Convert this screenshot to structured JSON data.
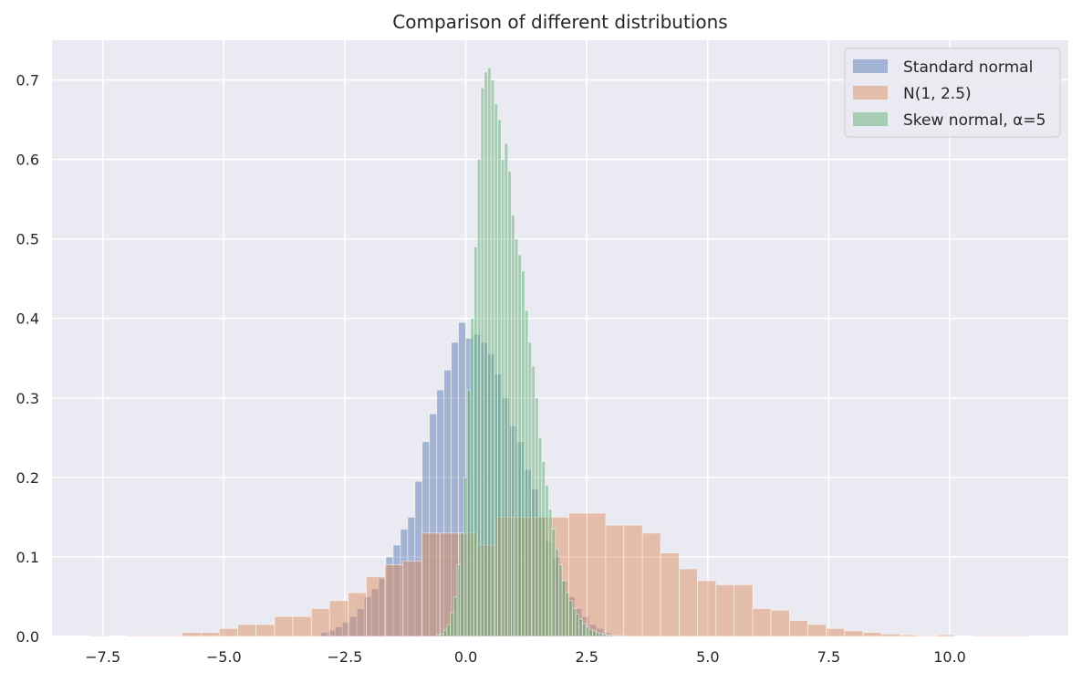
{
  "chart_data": {
    "type": "bar",
    "title": "Comparison of different distributions",
    "xlabel": "",
    "ylabel": "",
    "xlim": [
      -8.55,
      12.45
    ],
    "ylim": [
      0,
      0.75
    ],
    "x_ticks": [
      -7.5,
      -5.0,
      -2.5,
      0.0,
      2.5,
      5.0,
      7.5,
      10.0
    ],
    "x_tick_labels": [
      "−7.5",
      "−5.0",
      "−2.5",
      "0.0",
      "2.5",
      "5.0",
      "7.5",
      "10.0"
    ],
    "y_ticks": [
      0.0,
      0.1,
      0.2,
      0.3,
      0.4,
      0.5,
      0.6,
      0.7
    ],
    "y_tick_labels": [
      "0.0",
      "0.1",
      "0.2",
      "0.3",
      "0.4",
      "0.5",
      "0.6",
      "0.7"
    ],
    "grid": true,
    "legend_position": "top-right",
    "background_color": "#eaeaf2",
    "series": [
      {
        "name": "Standard normal",
        "color": "#4c72b0",
        "opacity": 0.45,
        "bin_edges": [
          -3.0,
          -2.85,
          -2.7,
          -2.55,
          -2.4,
          -2.25,
          -2.1,
          -1.95,
          -1.8,
          -1.65,
          -1.5,
          -1.35,
          -1.2,
          -1.05,
          -0.9,
          -0.75,
          -0.6,
          -0.45,
          -0.3,
          -0.15,
          0.0,
          0.15,
          0.3,
          0.45,
          0.6,
          0.75,
          0.9,
          1.05,
          1.2,
          1.35,
          1.5,
          1.65,
          1.8,
          1.95,
          2.1,
          2.25,
          2.4,
          2.55,
          2.7,
          2.85,
          3.0
        ],
        "values": [
          0.005,
          0.008,
          0.012,
          0.018,
          0.025,
          0.035,
          0.05,
          0.06,
          0.073,
          0.1,
          0.115,
          0.135,
          0.15,
          0.195,
          0.245,
          0.28,
          0.31,
          0.335,
          0.37,
          0.395,
          0.375,
          0.38,
          0.37,
          0.355,
          0.33,
          0.3,
          0.265,
          0.245,
          0.21,
          0.185,
          0.15,
          0.12,
          0.1,
          0.07,
          0.05,
          0.035,
          0.025,
          0.015,
          0.01,
          0.005
        ]
      },
      {
        "name": "N(1, 2.5)",
        "color": "#dd8452",
        "opacity": 0.45,
        "bin_edges": [
          -7.75,
          -7.375,
          -6.99,
          -6.615,
          -6.23,
          -5.855,
          -5.47,
          -5.095,
          -4.71,
          -4.335,
          -3.95,
          -3.575,
          -3.19,
          -2.815,
          -2.43,
          -2.055,
          -1.67,
          -1.295,
          -0.91,
          -0.535,
          -0.15,
          0.225,
          0.61,
          0.985,
          1.37,
          1.745,
          2.13,
          2.505,
          2.89,
          3.265,
          3.65,
          4.025,
          4.41,
          4.785,
          5.17,
          5.545,
          5.93,
          6.305,
          6.69,
          7.065,
          7.45,
          7.825,
          8.21,
          8.585,
          8.97,
          9.345,
          9.73,
          10.105,
          10.49,
          10.865,
          11.25,
          11.625
        ],
        "values": [
          0.001,
          0.0,
          0.001,
          0.001,
          0.001,
          0.005,
          0.005,
          0.01,
          0.015,
          0.015,
          0.025,
          0.025,
          0.035,
          0.045,
          0.055,
          0.075,
          0.09,
          0.095,
          0.13,
          0.13,
          0.13,
          0.115,
          0.15,
          0.15,
          0.15,
          0.15,
          0.155,
          0.155,
          0.14,
          0.14,
          0.13,
          0.105,
          0.085,
          0.07,
          0.065,
          0.065,
          0.035,
          0.033,
          0.02,
          0.015,
          0.01,
          0.007,
          0.005,
          0.003,
          0.002,
          0.001,
          0.002,
          0.0,
          0.001,
          0.001,
          0.001
        ]
      },
      {
        "name": "Skew normal, α=5",
        "color": "#55a868",
        "opacity": 0.45,
        "bin_edges": [
          -0.6,
          -0.53,
          -0.46,
          -0.39,
          -0.32,
          -0.25,
          -0.18,
          -0.11,
          -0.04,
          0.03,
          0.1,
          0.17,
          0.24,
          0.31,
          0.38,
          0.45,
          0.52,
          0.59,
          0.66,
          0.73,
          0.8,
          0.87,
          0.94,
          1.01,
          1.08,
          1.15,
          1.22,
          1.29,
          1.36,
          1.43,
          1.5,
          1.57,
          1.64,
          1.71,
          1.78,
          1.85,
          1.92,
          1.99,
          2.06,
          2.13,
          2.2,
          2.27,
          2.34,
          2.41,
          2.48,
          2.55,
          2.62,
          2.69,
          2.76,
          2.83,
          2.9,
          2.97,
          3.04,
          3.11,
          3.18,
          3.25,
          3.32,
          3.39,
          3.46,
          3.53,
          3.6
        ],
        "values": [
          0.002,
          0.003,
          0.008,
          0.015,
          0.03,
          0.05,
          0.09,
          0.13,
          0.2,
          0.31,
          0.4,
          0.49,
          0.6,
          0.69,
          0.71,
          0.715,
          0.7,
          0.67,
          0.65,
          0.6,
          0.62,
          0.585,
          0.53,
          0.5,
          0.48,
          0.46,
          0.41,
          0.37,
          0.34,
          0.3,
          0.25,
          0.22,
          0.19,
          0.16,
          0.135,
          0.11,
          0.09,
          0.07,
          0.055,
          0.045,
          0.035,
          0.028,
          0.022,
          0.016,
          0.012,
          0.009,
          0.007,
          0.005,
          0.004,
          0.003,
          0.002,
          0.002,
          0.001,
          0.001,
          0.001,
          0.0,
          0.001,
          0.0,
          0.0,
          0.0
        ]
      }
    ]
  }
}
